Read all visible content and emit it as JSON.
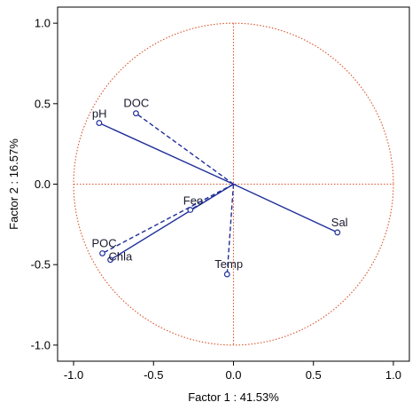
{
  "chart_data": {
    "type": "scatter",
    "subtype": "pca-correlation-circle",
    "xlabel": "Factor 1 : 41.53%",
    "ylabel": "Factor 2 : 16.57%",
    "xlim": [
      -1.1,
      1.1
    ],
    "ylim": [
      -1.1,
      1.1
    ],
    "x_ticks": [
      "-1.0",
      "-0.5",
      "0.0",
      "0.5",
      "1.0"
    ],
    "y_ticks": [
      "1.0",
      "0.5",
      "0.0",
      "-0.5",
      "-1.0"
    ],
    "grid": false,
    "unit_circle": true,
    "colors": {
      "vector": "#1f2f9a",
      "circle": "#d9542b",
      "frame": "#000000"
    },
    "points": [
      {
        "label": "pH",
        "x": -0.84,
        "y": 0.38,
        "line": "solid"
      },
      {
        "label": "DOC",
        "x": -0.61,
        "y": 0.44,
        "line": "dashed"
      },
      {
        "label": "POC",
        "x": -0.82,
        "y": -0.43,
        "line": "dashed"
      },
      {
        "label": "Chla",
        "x": -0.77,
        "y": -0.47,
        "line": "solid"
      },
      {
        "label": "Feo",
        "x": -0.27,
        "y": -0.16,
        "line": "dashed"
      },
      {
        "label": "Temp",
        "x": -0.04,
        "y": -0.56,
        "line": "dashed"
      },
      {
        "label": "Sal",
        "x": 0.65,
        "y": -0.3,
        "line": "solid"
      }
    ]
  }
}
